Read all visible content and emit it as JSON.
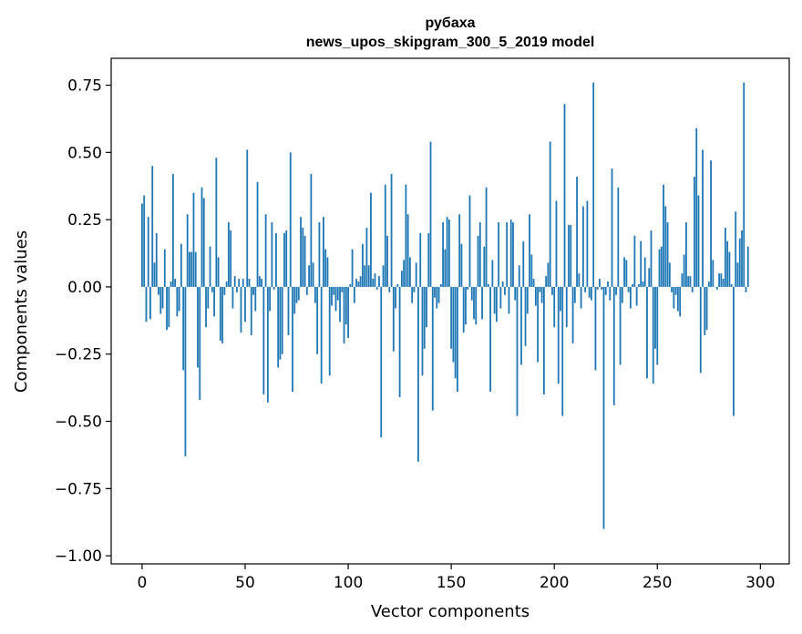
{
  "chart_data": {
    "type": "bar",
    "title": "рубаха",
    "subtitle": "news_upos_skipgram_300_5_2019 model",
    "xlabel": "Vector components",
    "ylabel": "Components values",
    "xlim": [
      -15,
      314
    ],
    "ylim": [
      -1.03,
      0.85
    ],
    "xticks": [
      0,
      50,
      100,
      150,
      200,
      250,
      300
    ],
    "xtick_labels": [
      "0",
      "50",
      "100",
      "150",
      "200",
      "250",
      "300"
    ],
    "yticks": [
      0.75,
      0.5,
      0.25,
      0.0,
      -0.25,
      -0.5,
      -0.75,
      -1.0
    ],
    "ytick_labels": [
      "0.75",
      "0.50",
      "0.25",
      "0.00",
      "−0.25",
      "−0.50",
      "−0.75",
      "−1.00"
    ],
    "bar_color": "#1f77b4",
    "categories_start": 0,
    "values": [
      0.31,
      0.34,
      -0.13,
      0.26,
      -0.12,
      0.45,
      0.09,
      0.2,
      -0.03,
      -0.1,
      -0.08,
      0.14,
      -0.16,
      -0.15,
      0.02,
      0.42,
      0.03,
      -0.11,
      -0.09,
      0.16,
      -0.31,
      -0.63,
      0.27,
      0.13,
      0.13,
      0.35,
      0.13,
      -0.3,
      -0.42,
      0.37,
      0.33,
      -0.15,
      -0.08,
      0.15,
      -0.02,
      -0.11,
      0.48,
      0.11,
      -0.2,
      -0.21,
      -0.03,
      0.02,
      0.24,
      0.21,
      -0.08,
      0.04,
      -0.02,
      0.03,
      -0.17,
      0.03,
      -0.13,
      0.51,
      0.03,
      -0.18,
      -0.03,
      -0.09,
      0.39,
      0.04,
      0.03,
      -0.4,
      0.27,
      -0.43,
      -0.09,
      0.24,
      -0.01,
      0.2,
      -0.3,
      -0.27,
      -0.25,
      0.2,
      0.21,
      -0.18,
      0.5,
      -0.39,
      -0.1,
      -0.06,
      -0.05,
      0.26,
      0.22,
      0.19,
      -0.03,
      0.08,
      0.42,
      0.09,
      -0.06,
      -0.25,
      0.24,
      -0.36,
      0.26,
      0.14,
      0.11,
      -0.33,
      -0.07,
      -0.03,
      -0.09,
      -0.05,
      -0.13,
      -0.02,
      -0.21,
      -0.14,
      -0.19,
      0.01,
      0.14,
      -0.06,
      0.03,
      0.02,
      0.04,
      0.16,
      0.08,
      0.22,
      0.08,
      0.35,
      0.03,
      0.05,
      -0.01,
      0.04,
      -0.56,
      0.08,
      0.38,
      0.19,
      -0.02,
      0.42,
      -0.24,
      -0.08,
      0.01,
      -0.41,
      0.06,
      0.1,
      0.38,
      0.27,
      0.11,
      -0.06,
      -0.02,
      0.09,
      -0.65,
      0.2,
      -0.33,
      -0.23,
      -0.15,
      0.2,
      0.54,
      -0.46,
      -0.04,
      -0.08,
      -0.06,
      0.01,
      0.24,
      0.14,
      0.26,
      0.25,
      -0.23,
      -0.28,
      -0.34,
      -0.39,
      0.27,
      0.16,
      -0.17,
      -0.14,
      -0.01,
      0.34,
      -0.05,
      -0.12,
      -0.14,
      0.19,
      0.24,
      -0.12,
      0.15,
      0.37,
      0.01,
      -0.39,
      0.1,
      -0.1,
      -0.13,
      0.24,
      -0.08,
      0.02,
      -0.03,
      0.24,
      -0.1,
      0.25,
      0.24,
      -0.05,
      -0.48,
      0.08,
      -0.29,
      0.17,
      -0.22,
      -0.1,
      0.27,
      0.12,
      0.03,
      -0.07,
      -0.28,
      -0.02,
      -0.06,
      -0.4,
      0.04,
      0.09,
      0.54,
      -0.03,
      -0.15,
      0.32,
      -0.36,
      -0.09,
      -0.48,
      0.68,
      -0.15,
      0.23,
      0.23,
      -0.21,
      -0.06,
      0.41,
      0.05,
      -0.08,
      0.3,
      -0.02,
      0.32,
      -0.04,
      -0.05,
      0.76,
      -0.31,
      -0.01,
      0.03,
      -0.01,
      -0.9,
      -0.03,
      0.02,
      -0.05,
      0.44,
      -0.44,
      -0.03,
      0.37,
      -0.29,
      -0.06,
      0.11,
      0.1,
      -0.02,
      -0.08,
      0.01,
      0.19,
      -0.07,
      0.01,
      0.17,
      0.02,
      0.11,
      -0.34,
      0.07,
      0.21,
      -0.36,
      -0.23,
      -0.29,
      0.14,
      0.15,
      0.38,
      0.3,
      0.24,
      0.09,
      -0.02,
      -0.08,
      -0.03,
      -0.09,
      -0.11,
      0.05,
      0.12,
      0.24,
      0.04,
      0.04,
      -0.02,
      0.41,
      0.59,
      0.34,
      -0.32,
      0.51,
      -0.18,
      -0.16,
      0.02,
      0.47,
      0.1,
      0.0,
      -0.01,
      0.05,
      0.05,
      0.03,
      0.22,
      0.17,
      0.13,
      0.01,
      -0.48,
      0.28,
      0.09,
      0.18,
      0.21,
      0.76,
      -0.02,
      0.15
    ]
  }
}
